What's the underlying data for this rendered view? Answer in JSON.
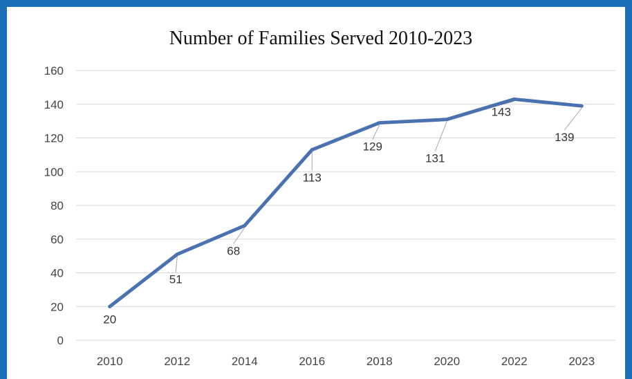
{
  "chart_data": {
    "type": "line",
    "title": "Number of Families Served 2010-2023",
    "xlabel": "",
    "ylabel": "",
    "categories": [
      "2010",
      "2012",
      "2014",
      "2016",
      "2018",
      "2020",
      "2022",
      "2023"
    ],
    "series": [
      {
        "values": [
          20,
          51,
          68,
          113,
          129,
          131,
          143,
          139
        ]
      }
    ],
    "data_labels": [
      "20",
      "51",
      "68",
      "113",
      "129",
      "131",
      "143",
      "139"
    ],
    "y_ticks": [
      "0",
      "20",
      "40",
      "60",
      "80",
      "100",
      "120",
      "140",
      "160"
    ],
    "ylim": [
      0,
      160
    ],
    "grid": true,
    "legend": "none",
    "colors": {
      "line": "#4a72b0",
      "grid": "#d9d9d9",
      "frame": "#1a6fb8",
      "leader": "#a6a6a6"
    }
  }
}
